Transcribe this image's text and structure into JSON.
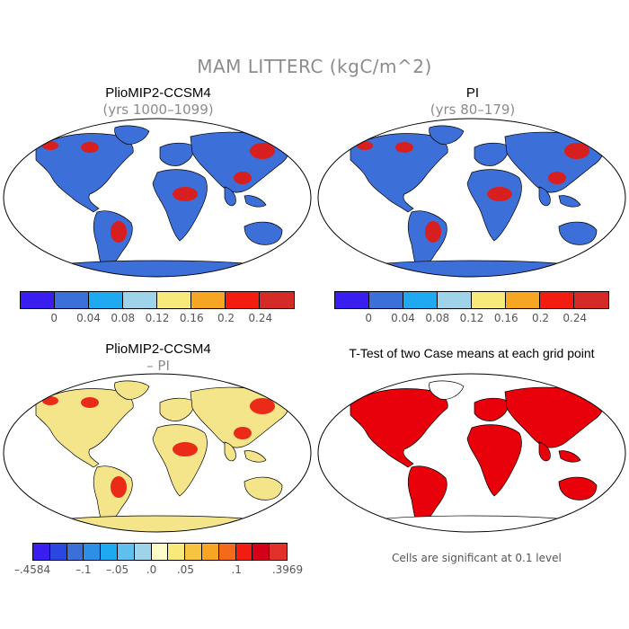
{
  "figure": {
    "title": "MAM LITTERC (kgC/m^2)"
  },
  "panels": [
    {
      "title": "PlioMIP2-CCSM4",
      "subtitle": "(yrs 1000–1099)",
      "dominant_fill": "#3d6fd9",
      "hotspot_fill": "#e8160a"
    },
    {
      "title": "PI",
      "subtitle": "(yrs 80–179)",
      "dominant_fill": "#3d6fd9",
      "hotspot_fill": "#e8160a"
    },
    {
      "title": "PlioMIP2-CCSM4",
      "subtitle": "– PI",
      "dominant_fill": "#f5e58a",
      "hotspot_fill": "#e8160a"
    },
    {
      "title": "T-Test of two Case means at each grid point",
      "subtitle": "",
      "dominant_fill": "#e8000b",
      "hotspot_fill": "#e8000b"
    }
  ],
  "colorbar_abs": {
    "colors": [
      "#3a1ef0",
      "#3d6fd9",
      "#1fa9f0",
      "#9fd3ea",
      "#f7ea7b",
      "#f6a623",
      "#f21c10",
      "#d42a28"
    ],
    "tick_labels": [
      "0",
      "0.04",
      "0.08",
      "0.12",
      "0.16",
      "0.2",
      "0.24"
    ]
  },
  "colorbar_diff": {
    "colors": [
      "#3a1ef0",
      "#2a47e0",
      "#3d6fd9",
      "#2d8fe6",
      "#1fa9f0",
      "#5fc0ee",
      "#9fd3ea",
      "#fdfbc8",
      "#f7ea7b",
      "#f6c440",
      "#f6a623",
      "#f46a1a",
      "#f21c10",
      "#d4001a",
      "#e2302a"
    ],
    "tick_labels": [
      "–.4584",
      "–.1",
      "–.05",
      ".0",
      ".05",
      ".1",
      ".3969"
    ]
  },
  "note": "Cells are significant at 0.1 level"
}
